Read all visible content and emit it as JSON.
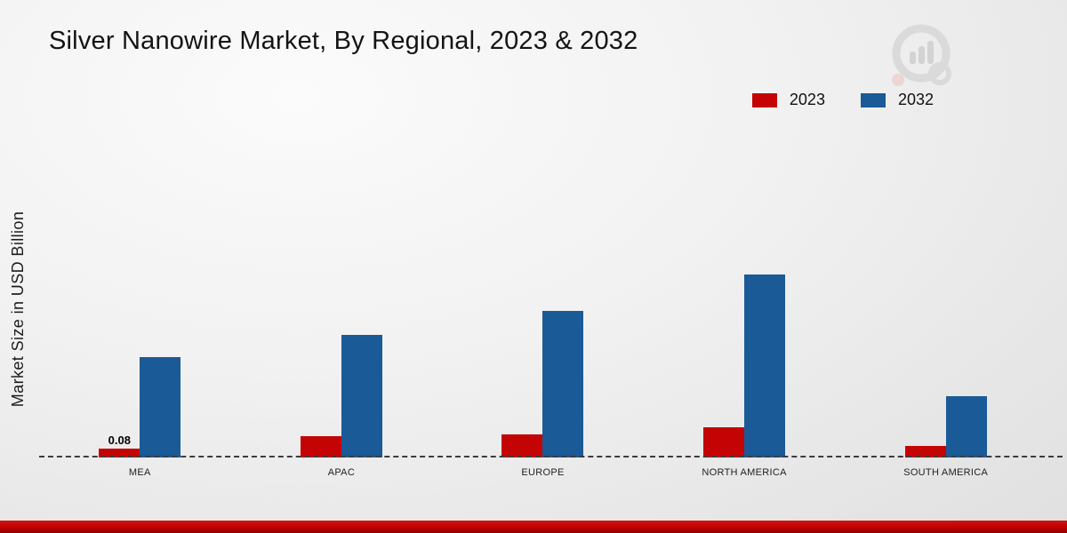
{
  "title": "Silver Nanowire Market, By Regional, 2023 & 2032",
  "ylabel": "Market Size in USD Billion",
  "legend": [
    {
      "label": "2023",
      "color": "#c40404"
    },
    {
      "label": "2032",
      "color": "#1a5a96"
    }
  ],
  "colors": {
    "bar_2023": "#c40404",
    "bar_2032": "#1a5a96",
    "footer_stripe": "#c00000",
    "background": "#ededed",
    "baseline": "#3c3c3c"
  },
  "chart_data": {
    "type": "bar",
    "title": "Silver Nanowire Market, By Regional, 2023 & 2032",
    "ylabel": "Market Size in USD Billion",
    "xlabel": "",
    "categories": [
      "MEA",
      "APAC",
      "EUROPE",
      "NORTH AMERICA",
      "SOUTH AMERICA"
    ],
    "series": [
      {
        "name": "2023",
        "color": "#c40404",
        "values": [
          0.08,
          0.19,
          0.21,
          0.27,
          0.1
        ]
      },
      {
        "name": "2032",
        "color": "#1a5a96",
        "values": [
          0.9,
          1.1,
          1.32,
          1.65,
          0.55
        ]
      }
    ],
    "annotations": [
      {
        "category": "MEA",
        "series": "2023",
        "text": "0.08"
      }
    ],
    "ylim": [
      0,
      2
    ],
    "grid": false,
    "legend_position": "top-right",
    "baseline_style": "dashed",
    "units": "USD Billion"
  }
}
